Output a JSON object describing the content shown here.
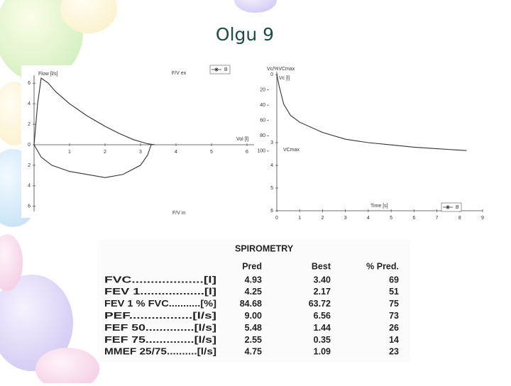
{
  "title": "Olgu 9",
  "chart_data": [
    {
      "type": "line",
      "x_label": "Vol [l]",
      "y_label": "Flow [l/s]",
      "annotations": [
        "F/V ex",
        "F/V in"
      ],
      "series": [
        {
          "name": "B",
          "color": "#333333",
          "x": [
            0,
            0.1,
            0.2,
            0.4,
            0.6,
            1.0,
            1.5,
            2.0,
            2.4,
            2.8,
            3.2,
            3.4
          ],
          "values": [
            0,
            4,
            6.5,
            6.0,
            5.2,
            4.0,
            2.8,
            1.8,
            1.1,
            0.5,
            0.1,
            0
          ]
        },
        {
          "color": "#333333",
          "x": [
            0,
            0.2,
            0.5,
            1.0,
            1.5,
            2.0,
            2.5,
            3.0,
            3.2,
            3.3
          ],
          "values": [
            0,
            -1.2,
            -2.0,
            -2.6,
            -2.9,
            -3.2,
            -2.9,
            -2.0,
            -1.0,
            0
          ]
        }
      ],
      "xlim": [
        0,
        6.2
      ],
      "ylim": [
        -6.5,
        6.5
      ],
      "xticks": [
        1,
        2,
        3,
        4,
        5,
        6
      ],
      "yticks": [
        {
          "value": -6,
          "label": "6"
        },
        {
          "value": -4,
          "label": "4"
        },
        {
          "value": -2,
          "label": "2"
        },
        0,
        2,
        4,
        6
      ],
      "legend": "top right"
    },
    {
      "type": "line",
      "x_label": "Time [s]",
      "y_label": "Vc [l]",
      "y2_label": "Vc/%VCmax",
      "annotations": [
        "VCmax"
      ],
      "series": [
        {
          "name": "B",
          "color": "#333333",
          "x": [
            0,
            0.1,
            0.3,
            0.6,
            1,
            2,
            3,
            4,
            5,
            6,
            7,
            8.3
          ],
          "values": [
            0,
            0.5,
            1.3,
            1.8,
            2.1,
            2.55,
            2.85,
            3.0,
            3.1,
            3.2,
            3.27,
            3.35
          ]
        }
      ],
      "xlim": [
        0,
        9
      ],
      "ylim": [
        0,
        6
      ],
      "y_inverted": true,
      "xticks": [
        0,
        1,
        2,
        3,
        4,
        5,
        6,
        7,
        8,
        9
      ],
      "yticks": [
        0,
        3,
        4,
        5,
        6
      ],
      "y2lim": [
        0,
        178
      ],
      "y2ticks": [
        20,
        40,
        60,
        80,
        100
      ],
      "legend": "bottom right"
    }
  ],
  "table": {
    "title": "SPIROMETRY",
    "header": [
      "Pred",
      "Best",
      "% Pred."
    ],
    "rows": [
      [
        "FVC...................[l]",
        "4.93",
        "3.40",
        "69"
      ],
      [
        "FEV 1..................[l]",
        "4.25",
        "2.17",
        "51"
      ],
      [
        "FEV 1 % FVC...........[%]",
        "84.68",
        "63.72",
        "75"
      ],
      [
        "PEF.................[l/s]",
        "9.00",
        "6.56",
        "73"
      ],
      [
        "FEF 50..............[l/s]",
        "5.48",
        "1.44",
        "26"
      ],
      [
        "FEF 75..............[l/s]",
        "2.55",
        "0.35",
        "14"
      ],
      [
        "MMEF 25/75..........[l/s]",
        "4.75",
        "1.09",
        "23"
      ]
    ]
  }
}
